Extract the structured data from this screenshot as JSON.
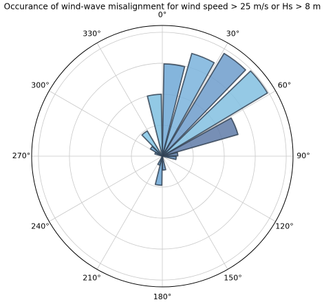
{
  "chart_data": {
    "type": "polar-bar",
    "title": "Occurance of wind-wave misalignment for wind speed > 25 m/s or Hs > 8 m",
    "theta": [
      7.5,
      22.5,
      37.5,
      52.5,
      67.5,
      82.5,
      97.5,
      172.5,
      187.5,
      202.5,
      292.5,
      307.5,
      322.5,
      352.5
    ],
    "values": [
      2.98,
      3.45,
      3.87,
      3.96,
      2.54,
      0.5,
      0.45,
      0.45,
      0.94,
      0.3,
      0.25,
      0.45,
      0.95,
      2.0
    ],
    "colors": [
      "#6fa8d6",
      "#7ab3dc",
      "#6d9ccb",
      "#82bfe0",
      "#5f7ba8",
      "#5a7aa5",
      "#5e8bb8",
      "#6d9ccb",
      "#6fa8d6",
      "#7ab3dc",
      "#82bfe0",
      "#6fa8d6",
      "#82c6e6",
      "#7fc0e0"
    ],
    "xticks": [
      {
        "value": 0,
        "label": "0°"
      },
      {
        "value": 30,
        "label": "30°"
      },
      {
        "value": 60,
        "label": "60°"
      },
      {
        "value": 90,
        "label": "90°"
      },
      {
        "value": 120,
        "label": "120°"
      },
      {
        "value": 150,
        "label": "150°"
      },
      {
        "value": 180,
        "label": "180°"
      },
      {
        "value": 210,
        "label": "210°"
      },
      {
        "value": 240,
        "label": "240°"
      },
      {
        "value": 270,
        "label": "270°"
      },
      {
        "value": 300,
        "label": "300°"
      },
      {
        "value": 330,
        "label": "330°"
      }
    ],
    "rlim": [
      0,
      4.22
    ],
    "rticks": [
      1,
      2,
      3,
      4
    ],
    "bar_width": 13,
    "grid": true
  }
}
